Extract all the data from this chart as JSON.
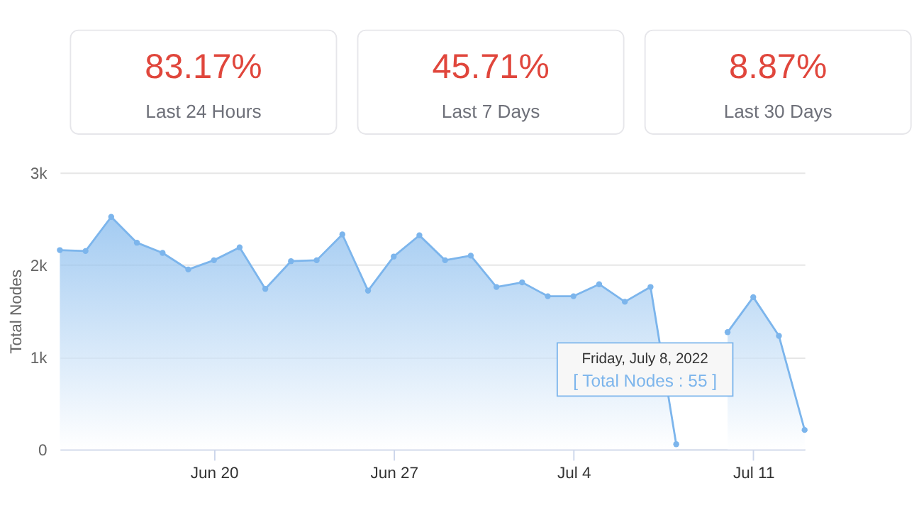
{
  "chart_data": [
    {
      "type": "other",
      "annotations": [
        "83.17%",
        "Last 24 Hours",
        "45.71%",
        "Last 7 Days",
        "8.87%",
        "Last 30 Days"
      ]
    },
    {
      "type": "area",
      "ylabel": "Total Nodes",
      "x": [
        "2022-06-14",
        "2022-06-15",
        "2022-06-16",
        "2022-06-17",
        "2022-06-18",
        "2022-06-19",
        "2022-06-20",
        "2022-06-21",
        "2022-06-22",
        "2022-06-23",
        "2022-06-24",
        "2022-06-25",
        "2022-06-26",
        "2022-06-27",
        "2022-06-28",
        "2022-06-29",
        "2022-06-30",
        "2022-07-01",
        "2022-07-02",
        "2022-07-03",
        "2022-07-04",
        "2022-07-05",
        "2022-07-06",
        "2022-07-07",
        "2022-07-08",
        "2022-07-09",
        "2022-07-10",
        "2022-07-11",
        "2022-07-12",
        "2022-07-13"
      ],
      "series": [
        {
          "color": "#7cb5ec",
          "values": [
            2160,
            2150,
            2520,
            2240,
            2130,
            1950,
            2050,
            2190,
            1740,
            2040,
            2050,
            2330,
            1720,
            2090,
            2320,
            2050,
            2100,
            1760,
            1810,
            1660,
            1660,
            1790,
            1600,
            1760,
            55,
            null,
            1270,
            1650,
            1230,
            210
          ]
        }
      ],
      "xlim": [
        "2022-06-14",
        "2022-07-13"
      ],
      "xticks": [
        {
          "value": "2022-06-20",
          "label": "Jun 20"
        },
        {
          "value": "2022-06-27",
          "label": "Jun 27"
        },
        {
          "value": "2022-07-04",
          "label": "Jul 4"
        },
        {
          "value": "2022-07-11",
          "label": "Jul 11"
        }
      ],
      "ylim": [
        0,
        3000
      ],
      "yticks": [
        0,
        {
          "value": 1000,
          "label": "1k"
        },
        {
          "value": 2000,
          "label": "2k"
        },
        {
          "value": 3000,
          "label": "3k"
        }
      ],
      "grid": "y",
      "marker": "circle",
      "annotations": [
        "Friday, July 8, 2022",
        "[ Total Nodes : 55 ]"
      ]
    }
  ]
}
